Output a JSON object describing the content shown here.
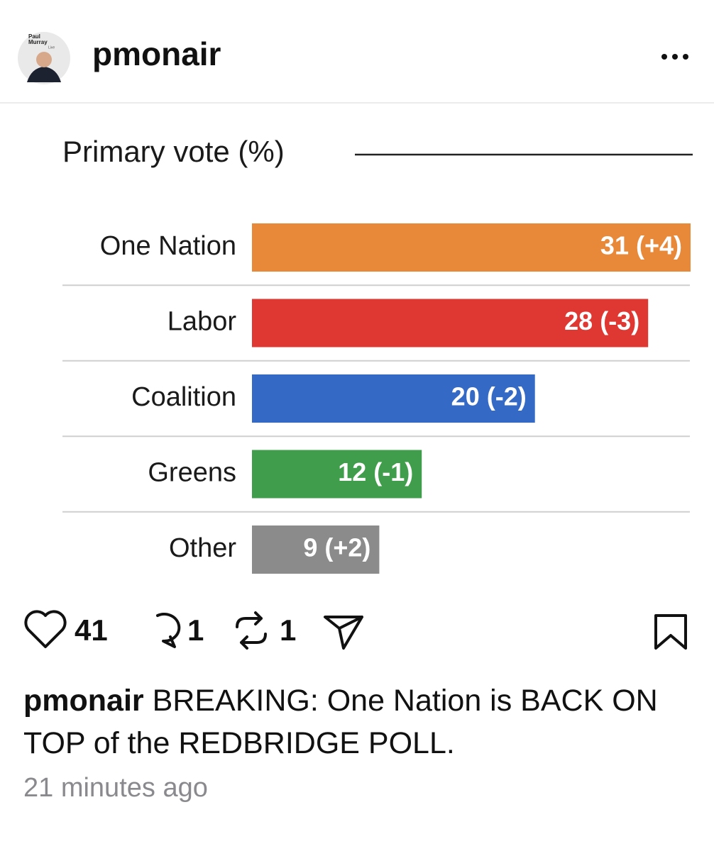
{
  "header": {
    "avatar_lines": [
      "Paul",
      "Murray",
      "Live"
    ],
    "username": "pmonair"
  },
  "chart_data": {
    "type": "hbar",
    "title": "Primary vote (%)",
    "categories": [
      "One Nation",
      "Labor",
      "Coalition",
      "Greens",
      "Other"
    ],
    "values": [
      31,
      28,
      20,
      12,
      9
    ],
    "value_labels": [
      "31 (+4)",
      "28 (-3)",
      "20 (-2)",
      "12 (-1)",
      "9 (+2)"
    ],
    "colors": [
      "#e8893a",
      "#df3832",
      "#3469c5",
      "#3f9d4b",
      "#8b8b8b"
    ]
  },
  "actions": {
    "likes": 41,
    "comments": 1,
    "reposts": 1
  },
  "caption": {
    "username": "pmonair",
    "text": "BREAKING: One Nation is BACK ON TOP of the REDBRIDGE POLL.",
    "time": "21 minutes ago"
  }
}
